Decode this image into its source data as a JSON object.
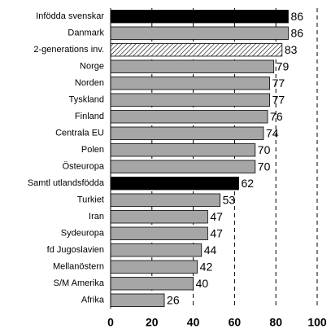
{
  "chart_data": {
    "type": "bar",
    "orientation": "horizontal",
    "categories": [
      "Infödda svenskar",
      "Danmark",
      "2-generations inv.",
      "Norge",
      "Norden",
      "Tyskland",
      "Finland",
      "Centrala EU",
      "Polen",
      "Östeuropa",
      "Samtl utlandsfödda",
      "Turkiet",
      "Iran",
      "Sydeuropa",
      "fd Jugoslavien",
      "Mellanöstern",
      "S/M Amerika",
      "Afrika"
    ],
    "values": [
      86,
      86,
      83,
      79,
      77,
      77,
      76,
      74,
      70,
      70,
      62,
      53,
      47,
      47,
      44,
      42,
      40,
      26
    ],
    "fills": [
      "#000000",
      "#a6a6a6",
      "hatch",
      "#a6a6a6",
      "#a6a6a6",
      "#a6a6a6",
      "#a6a6a6",
      "#a6a6a6",
      "#a6a6a6",
      "#a6a6a6",
      "#000000",
      "#a6a6a6",
      "#a6a6a6",
      "#a6a6a6",
      "#a6a6a6",
      "#a6a6a6",
      "#a6a6a6",
      "#a6a6a6"
    ],
    "xlim": [
      0,
      100
    ],
    "xticks": [
      0,
      20,
      40,
      60,
      80,
      100
    ],
    "grid": true,
    "grid_style": "dashed"
  }
}
